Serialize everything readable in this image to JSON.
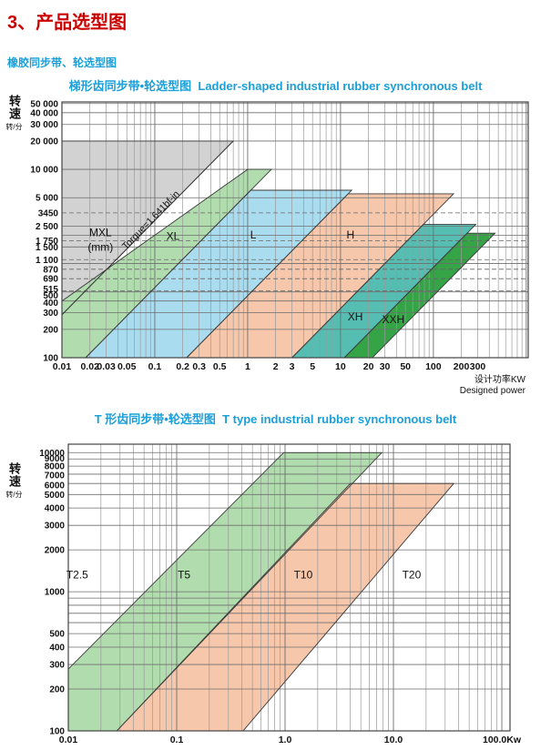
{
  "page": {
    "title": "3、产品选型图",
    "subtitle": "橡胶同步带、轮选型图"
  },
  "colors": {
    "title_red": "#cc0000",
    "heading_blue": "#1b9fd8",
    "grid_minor": "#9a9a9a",
    "grid_major": "#6e6e6e",
    "plot_border": "#444444",
    "band_outline": "#3a3a3a",
    "label_text": "#111111"
  },
  "chart_data": [
    {
      "type": "area",
      "title_zh": "梯形齿同步带•轮选型图",
      "title_en": "Ladder-shaped industrial rubber synchronous belt",
      "y_axis_label": "转速",
      "y_axis_unit": "转/分",
      "x_axis_label": "设计功率KW",
      "x_axis_label_en": "Designed power",
      "x_range": [
        0.01,
        1050
      ],
      "y_range": [
        100,
        52000
      ],
      "x_ticks": [
        {
          "label": "0.01",
          "v": 0.01
        },
        {
          "label": "0.02",
          "v": 0.02
        },
        {
          "label": "0.03",
          "v": 0.03
        },
        {
          "label": "0.05",
          "v": 0.05
        },
        {
          "label": "0.1",
          "v": 0.1
        },
        {
          "label": "0.2",
          "v": 0.2
        },
        {
          "label": "0.3",
          "v": 0.3
        },
        {
          "label": "0.5",
          "v": 0.5
        },
        {
          "label": "1",
          "v": 1
        },
        {
          "label": "2",
          "v": 2
        },
        {
          "label": "3",
          "v": 3
        },
        {
          "label": "5",
          "v": 5
        },
        {
          "label": "10",
          "v": 10
        },
        {
          "label": "20",
          "v": 20
        },
        {
          "label": "30",
          "v": 30
        },
        {
          "label": "50",
          "v": 50
        },
        {
          "label": "100",
          "v": 100
        },
        {
          "label": "200",
          "v": 200
        },
        {
          "label": "300",
          "v": 300
        }
      ],
      "y_ticks": [
        {
          "label": "50 000",
          "v": 50000
        },
        {
          "label": "40 000",
          "v": 40000
        },
        {
          "label": "30 000",
          "v": 30000
        },
        {
          "label": "20 000",
          "v": 20000
        },
        {
          "label": "10 000",
          "v": 10000
        },
        {
          "label": "5 000",
          "v": 5000
        },
        {
          "label": "3450",
          "v": 3450
        },
        {
          "label": "2 500",
          "v": 2500
        },
        {
          "label": "1 750",
          "v": 1750
        },
        {
          "label": "1 500",
          "v": 1500
        },
        {
          "label": "1 100",
          "v": 1100
        },
        {
          "label": "870",
          "v": 870
        },
        {
          "label": "690",
          "v": 690
        },
        {
          "label": "515",
          "v": 515,
          "dy": -2
        },
        {
          "label": "500",
          "v": 500,
          "dy": 4
        },
        {
          "label": "400",
          "v": 400,
          "dy": 2
        },
        {
          "label": "300",
          "v": 300
        },
        {
          "label": "200",
          "v": 200
        },
        {
          "label": "100",
          "v": 100
        }
      ],
      "grid_x_major": [
        0.01,
        0.1,
        1,
        10,
        100,
        1000
      ],
      "grid_x_minor": [
        0.02,
        0.03,
        0.04,
        0.05,
        0.06,
        0.07,
        0.08,
        0.09,
        0.2,
        0.3,
        0.4,
        0.5,
        0.6,
        0.7,
        0.8,
        0.9,
        2,
        3,
        4,
        5,
        6,
        7,
        8,
        9,
        20,
        30,
        40,
        50,
        60,
        70,
        80,
        90,
        200,
        300,
        400,
        500,
        600,
        700,
        800,
        900
      ],
      "grid_y_solid": [
        100,
        200,
        300,
        400,
        500,
        1000,
        1500,
        2000,
        2500,
        5000,
        10000,
        20000,
        30000,
        40000,
        50000
      ],
      "grid_y_dashed": [
        515,
        690,
        870,
        1100,
        1750,
        3450
      ],
      "bands": [
        {
          "name": "MXL",
          "color": "#d2d2d2",
          "max_speed_rpm": 20000,
          "power_range_kw_at_100rpm": [
            null,
            0.0035
          ],
          "points": [
            [
              0.01,
              20000
            ],
            [
              0.7,
              20000
            ],
            [
              0.01,
              286
            ]
          ]
        },
        {
          "name": "XL",
          "color": "#b0dcae",
          "max_speed_rpm": 10000,
          "power_range_kw_at_100rpm": [
            0.0025,
            0.018
          ],
          "points": [
            [
              0.01,
              400
            ],
            [
              1.0,
              10000
            ],
            [
              1.8,
              10000
            ],
            [
              0.018,
              100
            ],
            [
              0.01,
              100
            ]
          ]
        },
        {
          "name": "L",
          "color": "#aadcf0",
          "max_speed_rpm": 6000,
          "power_range_kw_at_100rpm": [
            0.018,
            0.22
          ],
          "points": [
            [
              0.018,
              100
            ],
            [
              1.08,
              6000
            ],
            [
              13.2,
              6000
            ],
            [
              0.22,
              100
            ]
          ]
        },
        {
          "name": "H",
          "color": "#f6c7ab",
          "max_speed_rpm": 5500,
          "power_range_kw_at_100rpm": [
            0.22,
            3.0
          ],
          "points": [
            [
              0.22,
              100
            ],
            [
              12.1,
              5500
            ],
            [
              165,
              5500
            ],
            [
              3.0,
              100
            ]
          ]
        },
        {
          "name": "XH",
          "color": "#55bdb2",
          "max_speed_rpm": 2600,
          "power_range_kw_at_100rpm": [
            3.0,
            11
          ],
          "points": [
            [
              3.0,
              100
            ],
            [
              78,
              2600
            ],
            [
              286,
              2600
            ],
            [
              11,
              100
            ]
          ]
        },
        {
          "name": "XXH",
          "color": "#35a447",
          "max_speed_rpm": 2100,
          "power_range_kw_at_100rpm": [
            11,
            22
          ],
          "points": [
            [
              11,
              100
            ],
            [
              231,
              2100
            ],
            [
              462,
              2100
            ],
            [
              22,
              100
            ]
          ]
        }
      ],
      "labels": [
        {
          "text": "MXL",
          "p": 0.026,
          "n": 1950
        },
        {
          "text": "(mm)",
          "p": 0.026,
          "n": 1370
        },
        {
          "text": "XL",
          "p": 0.157,
          "n": 1790
        },
        {
          "text": "L",
          "p": 1.15,
          "n": 1850
        },
        {
          "text": "H",
          "p": 12.8,
          "n": 1850
        },
        {
          "text": "XH",
          "p": 14.4,
          "n": 250
        },
        {
          "text": "XXH",
          "p": 37,
          "n": 234
        }
      ],
      "annotation_line": {
        "text": "Torgue=1.641bf-in",
        "points": [
          [
            0.01,
            286
          ],
          [
            0.7,
            20000
          ]
        ],
        "label_p": 0.0955,
        "label_n": 2750,
        "rotation": -46
      }
    },
    {
      "type": "area",
      "title_zh": "T 形齿同步带•轮选型图",
      "title_en": "T type industrial rubber synchronous belt",
      "y_axis_label": "转速",
      "y_axis_unit": "转/分",
      "x_axis_label": "",
      "x_axis_label_en": "",
      "x_range": [
        0.01,
        119
      ],
      "y_range": [
        100,
        11500
      ],
      "x_ticks": [
        {
          "label": "0.01",
          "v": 0.01
        },
        {
          "label": "0.1",
          "v": 0.1
        },
        {
          "label": "1.0",
          "v": 1.0
        },
        {
          "label": "10.0",
          "v": 10.0
        },
        {
          "label": "100.0Kw",
          "v": 100
        }
      ],
      "y_ticks": [
        {
          "label": "10000",
          "v": 10000
        },
        {
          "label": "9000",
          "v": 9000,
          "dy": -1
        },
        {
          "label": "8000",
          "v": 8000
        },
        {
          "label": "7000",
          "v": 7000,
          "dy": 1
        },
        {
          "label": "6000",
          "v": 6000,
          "dy": 2
        },
        {
          "label": "5000",
          "v": 5000
        },
        {
          "label": "4000",
          "v": 4000
        },
        {
          "label": "3000",
          "v": 3000
        },
        {
          "label": "2000",
          "v": 2000
        },
        {
          "label": "1000",
          "v": 1000
        },
        {
          "label": "500",
          "v": 500
        },
        {
          "label": "400",
          "v": 400
        },
        {
          "label": "300",
          "v": 300
        },
        {
          "label": "200",
          "v": 200
        },
        {
          "label": "100",
          "v": 100
        }
      ],
      "grid_x_major": [
        0.01,
        0.1,
        1,
        10,
        100
      ],
      "grid_x_minor": [
        0.02,
        0.03,
        0.04,
        0.05,
        0.06,
        0.07,
        0.08,
        0.09,
        0.2,
        0.3,
        0.4,
        0.5,
        0.6,
        0.7,
        0.8,
        0.9,
        2,
        3,
        4,
        5,
        6,
        7,
        8,
        9,
        20,
        30,
        40,
        50,
        60,
        70,
        80,
        90
      ],
      "grid_y_solid": [
        100,
        200,
        300,
        400,
        500,
        600,
        700,
        800,
        900,
        1000,
        2000,
        3000,
        4000,
        5000,
        6000,
        7000,
        8000,
        9000,
        10000
      ],
      "grid_y_dashed": [],
      "bands": [
        {
          "name": "T5",
          "color": "#b0dcae",
          "max_speed_rpm": 10000,
          "power_range_kw_at_100rpm": [
            0.0034,
            0.028
          ],
          "points": [
            [
              0.01,
              278
            ],
            [
              0.97,
              10000
            ],
            [
              7.8,
              10000
            ],
            [
              0.028,
              100
            ],
            [
              0.01,
              100
            ]
          ]
        },
        {
          "name": "T10",
          "color": "#f6c7ab",
          "max_speed_rpm": 6000,
          "power_range_kw_at_100rpm": [
            0.028,
            0.41
          ],
          "points": [
            [
              0.028,
              100
            ],
            [
              4.0,
              6000
            ],
            [
              36,
              6000
            ],
            [
              0.41,
              100
            ]
          ]
        }
      ],
      "labels": [
        {
          "text": "T2.5",
          "p": 0.0121,
          "n": 1250
        },
        {
          "text": "T5",
          "p": 0.117,
          "n": 1250
        },
        {
          "text": "T10",
          "p": 1.47,
          "n": 1250
        },
        {
          "text": "T20",
          "p": 14.7,
          "n": 1250
        }
      ],
      "annotation_line": null
    }
  ]
}
